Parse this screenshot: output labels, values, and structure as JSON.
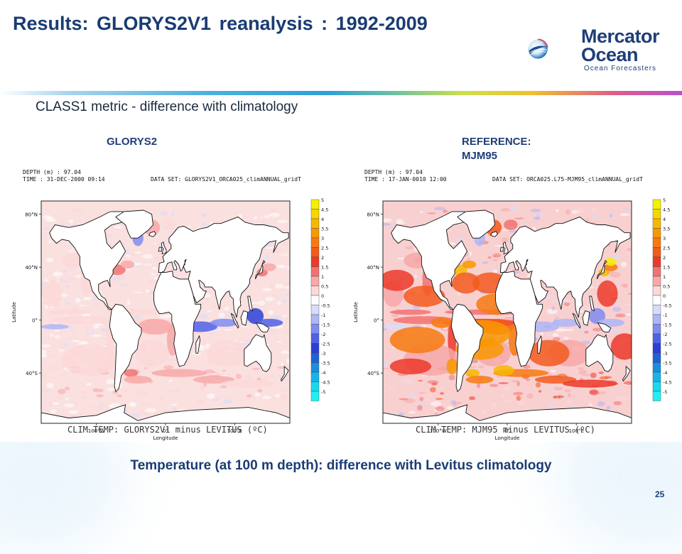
{
  "slide": {
    "title": "Results: GLORYS2V1  reanalysis :  1992-2009",
    "subtitle": "CLASS1 metric - difference with climatology",
    "caption": "Temperature (at 100 m depth): difference with Levitus climatology",
    "page_number": "25"
  },
  "logo": {
    "line1": "Mercator",
    "line2": "Ocean",
    "tagline": "Ocean Forecasters"
  },
  "colors": {
    "title": "#1a3c73",
    "warm": "#e8242a",
    "cool": "#3a4fd8"
  },
  "panels": [
    {
      "label_lines": [
        "GLORYS2"
      ],
      "depth": "DEPTH (m) : 97.04",
      "time": "TIME : 31-DEC-2000 09:14",
      "dataset": "DATA SET: GLORYS2V1_ORCA025_climANNUAL_gridT",
      "bottom_label": "CLIM TEMP: GLORYS2V1 minus LEVITUS (ºC)",
      "intensity": 0.45
    },
    {
      "label_lines": [
        "REFERENCE:",
        "MJM95"
      ],
      "depth": "DEPTH (m) : 97.04",
      "time": "TIME : 17-JAN-0010 12:00",
      "dataset": "DATA SET: ORCA025.L75-MJM95_climANNUAL_gridT",
      "bottom_label": "CLIM TEMP: MJM95 minus LEVITUS (ºC)",
      "intensity": 1.0
    }
  ],
  "axes": {
    "lat_ticks": [
      "80°N",
      "40°N",
      "0°",
      "40°S"
    ],
    "lon_ticks": [
      "100°W",
      "0°",
      "100°E"
    ],
    "xlabel": "Longitude",
    "ylabel": "Latitude"
  },
  "colorbar": {
    "labels": [
      "5",
      "4.5",
      "4",
      "3.5",
      "3",
      "2.5",
      "2",
      "1.5",
      "1",
      "0.5",
      "0",
      "-0.5",
      "-1",
      "-1.5",
      "-2",
      "-2.5",
      "-3",
      "-3.5",
      "-4",
      "-4.5",
      "-5"
    ],
    "colors": [
      "#f5f000",
      "#f7d600",
      "#f8b800",
      "#f89800",
      "#f77a10",
      "#f25a1e",
      "#ec3a2a",
      "#f27272",
      "#f7a8a8",
      "#fcd8d8",
      "#ffffff",
      "#d8dcfb",
      "#aeb6f7",
      "#7f8cf0",
      "#4f62e6",
      "#2a3fd8",
      "#2060d8",
      "#1c8ce0",
      "#18b4e8",
      "#18d8f0",
      "#20f0f4"
    ]
  }
}
